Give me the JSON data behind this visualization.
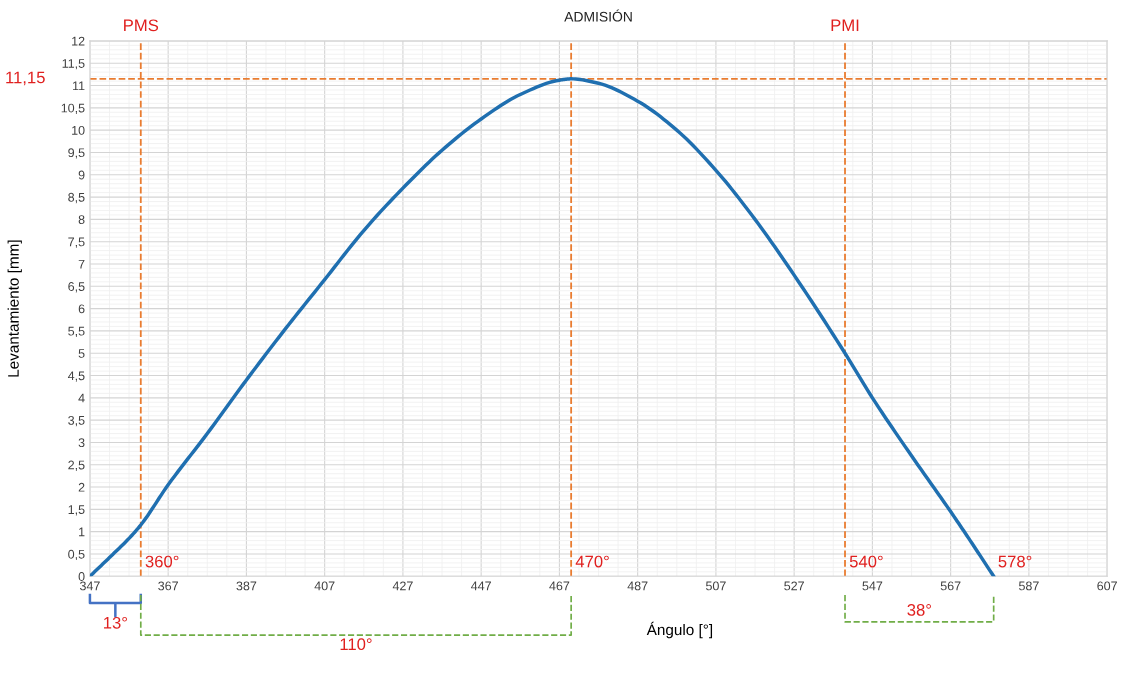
{
  "chart_data": {
    "type": "line",
    "title": "ADMISIÓN",
    "xlabel": "Ángulo [°]",
    "ylabel": "Levantamiento [mm]",
    "x": [
      347,
      352,
      357,
      360,
      367,
      377,
      387,
      397,
      407,
      417,
      427,
      437,
      447,
      457,
      467,
      470,
      477,
      487,
      497,
      507,
      517,
      527,
      540,
      547,
      557,
      567,
      572,
      578
    ],
    "series": [
      {
        "color": "#1f6fb0",
        "values": [
          0,
          0.42,
          0.85,
          1.15,
          2.05,
          3.2,
          4.4,
          5.55,
          6.65,
          7.75,
          8.7,
          9.55,
          10.25,
          10.8,
          11.12,
          11.15,
          11.05,
          10.65,
          10.0,
          9.1,
          8.0,
          6.75,
          5.0,
          4.0,
          2.7,
          1.45,
          0.8,
          0
        ]
      }
    ],
    "xlim": [
      347,
      607
    ],
    "xticks": [
      347,
      367,
      387,
      407,
      427,
      447,
      467,
      487,
      507,
      527,
      547,
      567,
      587,
      607
    ],
    "ylim": [
      0,
      12
    ],
    "yticks": [
      0,
      {
        "value": 0.5,
        "label": "0,5"
      },
      1,
      {
        "value": 1.5,
        "label": "1,5"
      },
      2,
      {
        "value": 2.5,
        "label": "2,5"
      },
      3,
      {
        "value": 3.5,
        "label": "3,5"
      },
      4,
      {
        "value": 4.5,
        "label": "4,5"
      },
      5,
      {
        "value": 5.5,
        "label": "5,5"
      },
      6,
      {
        "value": 6.5,
        "label": "6,5"
      },
      7,
      {
        "value": 7.5,
        "label": "7,5"
      },
      8,
      {
        "value": 8.5,
        "label": "8,5"
      },
      9,
      {
        "value": 9.5,
        "label": "9,5"
      },
      10,
      {
        "value": 10.5,
        "label": "10,5"
      },
      11,
      {
        "value": 11.5,
        "label": "11,5"
      },
      12
    ],
    "ref_lines": [
      {
        "axis": "x",
        "value": 360,
        "label": "PMS",
        "color": "#e97c30",
        "line_style": "dashed"
      },
      {
        "axis": "x",
        "value": 470,
        "label": null,
        "color": "#e97c30",
        "line_style": "dashed"
      },
      {
        "axis": "x",
        "value": 540,
        "label": "PMI",
        "color": "#e97c30",
        "line_style": "dashed"
      },
      {
        "axis": "y",
        "value": 11.15,
        "label": "11,15",
        "color": "#e97c30",
        "line_style": "dashed"
      }
    ],
    "annotations": [
      {
        "text": "360°",
        "x": 360,
        "y": 0
      },
      {
        "text": "470°",
        "x": 470,
        "y": 0
      },
      {
        "text": "540°",
        "x": 540,
        "y": 0
      },
      {
        "text": "578°",
        "x": 578,
        "y": 0
      },
      "13°",
      "110°",
      "38°"
    ],
    "grid": true,
    "marker": "none",
    "line_style": "solid"
  }
}
